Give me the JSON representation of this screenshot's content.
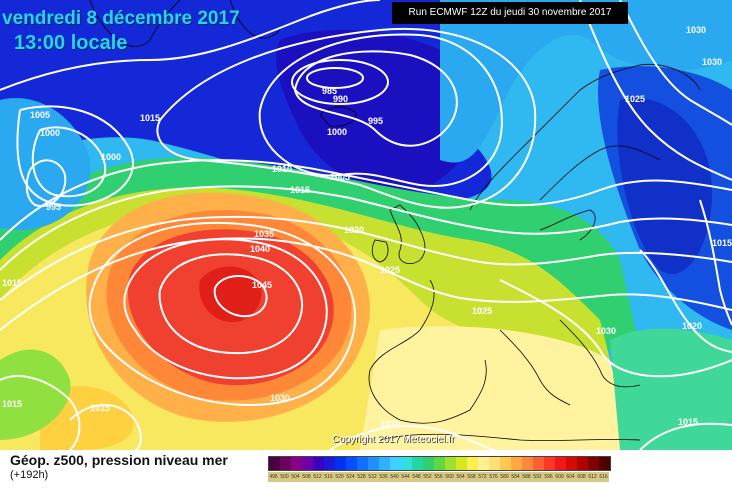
{
  "header": {
    "date_title": "vendredi 8 décembre 2017",
    "time_title": "13:00 locale",
    "run_info": "Run ECMWF 12Z du jeudi 30 novembre 2017"
  },
  "copyright": "Copyright 2017 Meteociel.fr",
  "footer": {
    "title": "Géop. z500, pression niveau mer",
    "subtitle": "(+192h)"
  },
  "legend": {
    "ticks": [
      "496",
      "500",
      "504",
      "508",
      "512",
      "516",
      "520",
      "524",
      "528",
      "532",
      "536",
      "540",
      "544",
      "548",
      "552",
      "556",
      "560",
      "564",
      "568",
      "572",
      "576",
      "580",
      "584",
      "588",
      "592",
      "596",
      "600",
      "604",
      "608",
      "612",
      "616"
    ],
    "colors": [
      "#4b0040",
      "#6e005e",
      "#8a0086",
      "#7000a8",
      "#3c00c0",
      "#1a1ad8",
      "#0030f0",
      "#0050ff",
      "#1070ff",
      "#2090ff",
      "#30b0ff",
      "#40d0ff",
      "#30e0e0",
      "#20d8a0",
      "#30d070",
      "#60d840",
      "#a0e030",
      "#d8e820",
      "#f8f050",
      "#fff090",
      "#ffe070",
      "#ffc850",
      "#ffa840",
      "#ff8838",
      "#ff6030",
      "#ff3828",
      "#f01818",
      "#d80808",
      "#b00000",
      "#800000",
      "#500000"
    ]
  },
  "isobar_labels": [
    "985",
    "990",
    "995",
    "1000",
    "1005",
    "1010",
    "1015",
    "1020",
    "1025",
    "1030",
    "1035",
    "1040",
    "1045"
  ],
  "map": {
    "labels": [
      {
        "text": "985",
        "ref": "low-center"
      },
      {
        "text": "990",
        "ref": "low-ring"
      },
      {
        "text": "995",
        "ref": "low-995"
      },
      {
        "text": "1000",
        "ref": "low-1000"
      },
      {
        "text": "1005",
        "ref": "low-1005"
      },
      {
        "text": "1015",
        "ref": "north-1015"
      },
      {
        "text": "1005",
        "ref": "west-1005"
      },
      {
        "text": "1000",
        "ref": "west-1000"
      },
      {
        "text": "995",
        "ref": "west-995"
      },
      {
        "text": "1000",
        "ref": "west-1000b"
      },
      {
        "text": "1010",
        "ref": "mid-1010"
      },
      {
        "text": "1015",
        "ref": "mid-1015"
      },
      {
        "text": "1020",
        "ref": "mid-1020"
      },
      {
        "text": "1025",
        "ref": "mid-1025"
      },
      {
        "text": "1035",
        "ref": "high-1035"
      },
      {
        "text": "1040",
        "ref": "high-1040"
      },
      {
        "text": "1045",
        "ref": "high-center"
      },
      {
        "text": "1030",
        "ref": "high-1030"
      },
      {
        "text": "1025",
        "ref": "europe-1025"
      },
      {
        "text": "1030",
        "ref": "east-1030"
      },
      {
        "text": "1020",
        "ref": "east-1020"
      },
      {
        "text": "1030",
        "ref": "ne-1030a"
      },
      {
        "text": "1030",
        "ref": "ne-1030b"
      },
      {
        "text": "1025",
        "ref": "ne-1025"
      },
      {
        "text": "1015",
        "ref": "east-1015"
      },
      {
        "text": "1015",
        "ref": "sw-1015a"
      },
      {
        "text": "1015",
        "ref": "sw-1015b"
      },
      {
        "text": "1015",
        "ref": "sw-1015c"
      },
      {
        "text": "1020",
        "ref": "south-1020"
      },
      {
        "text": "1015",
        "ref": "se-1015"
      }
    ]
  }
}
